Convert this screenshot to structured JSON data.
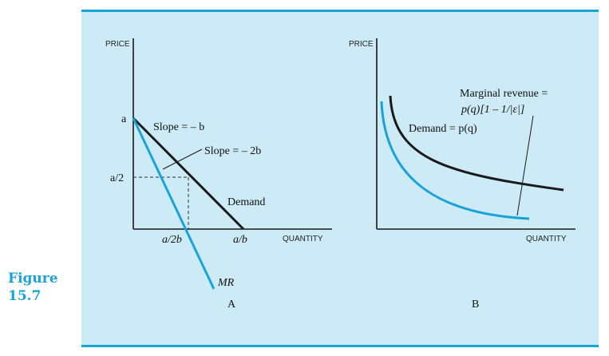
{
  "figure": {
    "label_word": "Figure",
    "label_number": "15.7"
  },
  "colors": {
    "accent": "#1aa3d9",
    "panel_bg": "#cdeaf7",
    "demand_line": "#1a1a1a",
    "mr_line": "#1aa3d9"
  },
  "panel_a": {
    "title": "A",
    "ylabel": "PRICE",
    "xlabel": "QUANTITY",
    "tick_a": "a",
    "tick_a2": "a/2",
    "tick_a2b": "a/2b",
    "tick_ab": "a/b",
    "slope_demand": "Slope = – b",
    "slope_mr": "Slope = – 2b",
    "demand_label": "Demand",
    "mr_label": "MR"
  },
  "panel_b": {
    "title": "B",
    "ylabel": "PRICE",
    "xlabel": "QUANTITY",
    "demand_label": "Demand = p(q)",
    "mr_label_line1": "Marginal revenue =",
    "mr_label_line2": "p(q)[1 – 1/|ε|]"
  }
}
